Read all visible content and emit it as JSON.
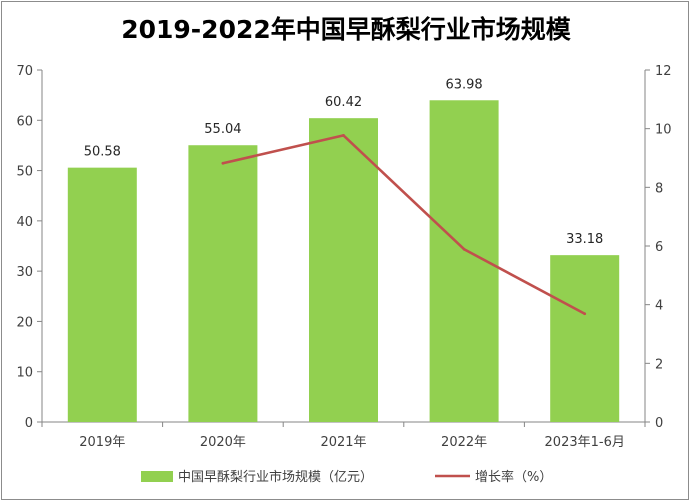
{
  "chart_data": {
    "type": "bar",
    "title": "2019-2022年中国早酥梨行业市场规模",
    "categories": [
      "2019年",
      "2020年",
      "2021年",
      "2022年",
      "2023年1-6月"
    ],
    "series": [
      {
        "name": "中国早酥梨行业市场规模（亿元）",
        "type": "bar",
        "axis": "left",
        "values": [
          50.58,
          55.04,
          60.42,
          63.98,
          33.18
        ],
        "labels": [
          "50.58",
          "55.04",
          "60.42",
          "63.98",
          "33.18"
        ]
      },
      {
        "name": "增长率（%）",
        "type": "line",
        "axis": "right",
        "values": [
          null,
          8.82,
          9.77,
          5.89,
          3.69
        ]
      }
    ],
    "ylim_left": [
      0,
      70
    ],
    "yticks_left": [
      "0",
      "10",
      "20",
      "30",
      "40",
      "50",
      "60",
      "70"
    ],
    "ylim_right": [
      0,
      12
    ],
    "yticks_right": [
      "0",
      "2",
      "4",
      "6",
      "8",
      "10",
      "12"
    ],
    "legend_position": "bottom",
    "grid": false,
    "colors": {
      "bar": "#92D050",
      "line": "#C0504D"
    }
  }
}
